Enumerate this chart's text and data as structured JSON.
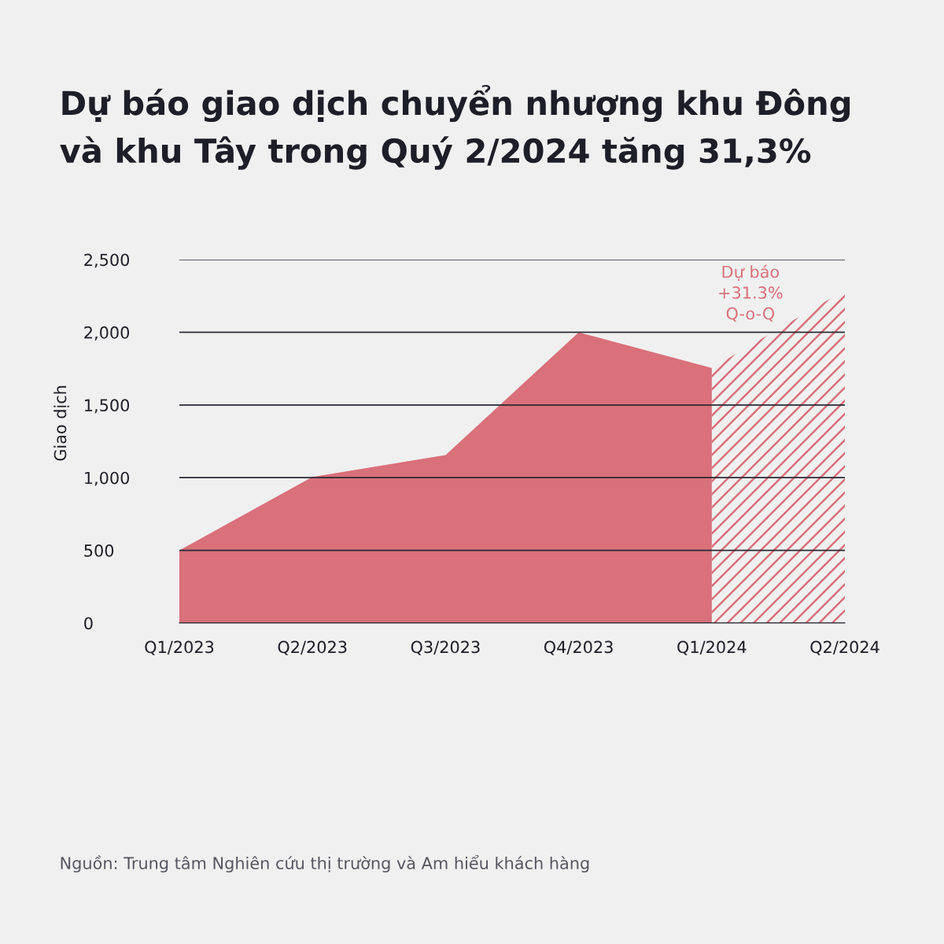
{
  "chart_data": {
    "type": "area",
    "title": "Dự báo giao dịch chuyển nhượng khu Đông\nvà khu Tây trong Quý 2/2024 tăng 31,3%",
    "ylabel": "Giao dịch",
    "categories": [
      "Q1/2023",
      "Q2/2023",
      "Q3/2023",
      "Q4/2023",
      "Q1/2024",
      "Q2/2024"
    ],
    "series": [
      {
        "color": "#d9707a",
        "values": [
          500,
          1005,
          1155,
          2000,
          1755,
          null
        ]
      },
      {
        "color": "#d9707a",
        "values": [
          null,
          null,
          null,
          null,
          1755,
          2290
        ]
      }
    ],
    "ylim": [
      0,
      2500
    ],
    "yticks": [
      0,
      500,
      {
        "value": 1000,
        "label": "1,000"
      },
      {
        "value": 1500,
        "label": "1,500"
      },
      {
        "value": 2000,
        "label": "2,000"
      },
      {
        "value": 2500,
        "label": "2,500"
      }
    ],
    "grid": "y",
    "annotations": [
      "Dự báo\n+31.3%\nQ-o-Q",
      "Nguồn: Trung tâm Nghiên cứu thị trường và Am hiểu khách hàng"
    ]
  }
}
